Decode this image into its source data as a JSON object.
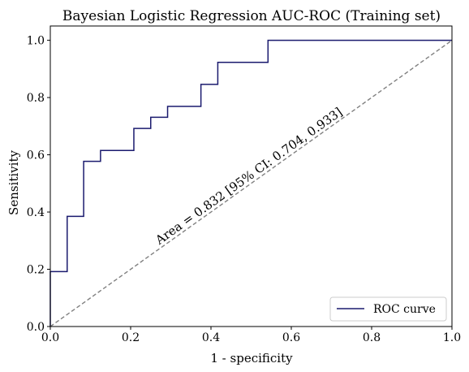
{
  "chart_data": {
    "type": "line",
    "title": "Bayesian Logistic Regression AUC-ROC (Training set)",
    "xlabel": "1 - specificity",
    "ylabel": "Sensitivity",
    "xlim": [
      0.0,
      1.0
    ],
    "ylim": [
      0.0,
      1.05
    ],
    "xticks": [
      "0.0",
      "0.2",
      "0.4",
      "0.6",
      "0.8",
      "1.0"
    ],
    "yticks": [
      "0.0",
      "0.2",
      "0.4",
      "0.6",
      "0.8",
      "1.0"
    ],
    "grid": false,
    "legend": {
      "placement": "lower-right",
      "entries": [
        "ROC curve"
      ]
    },
    "annotation": "Area = 0.832 [95% CI: 0.704, 0.933]",
    "series": [
      {
        "name": "ROC curve",
        "color": "#1a1a6e",
        "style": "step",
        "x": [
          0.0,
          0.0,
          0.042,
          0.042,
          0.083,
          0.083,
          0.125,
          0.125,
          0.208,
          0.208,
          0.25,
          0.25,
          0.292,
          0.292,
          0.375,
          0.375,
          0.417,
          0.417,
          0.542,
          0.542,
          1.0
        ],
        "y": [
          0.0,
          0.192,
          0.192,
          0.385,
          0.385,
          0.577,
          0.577,
          0.615,
          0.615,
          0.692,
          0.692,
          0.731,
          0.731,
          0.769,
          0.769,
          0.846,
          0.846,
          0.923,
          0.923,
          1.0,
          1.0
        ]
      },
      {
        "color": "#808080",
        "style": "dashed",
        "x": [
          0.0,
          1.0
        ],
        "y": [
          0.0,
          1.0
        ]
      }
    ]
  }
}
